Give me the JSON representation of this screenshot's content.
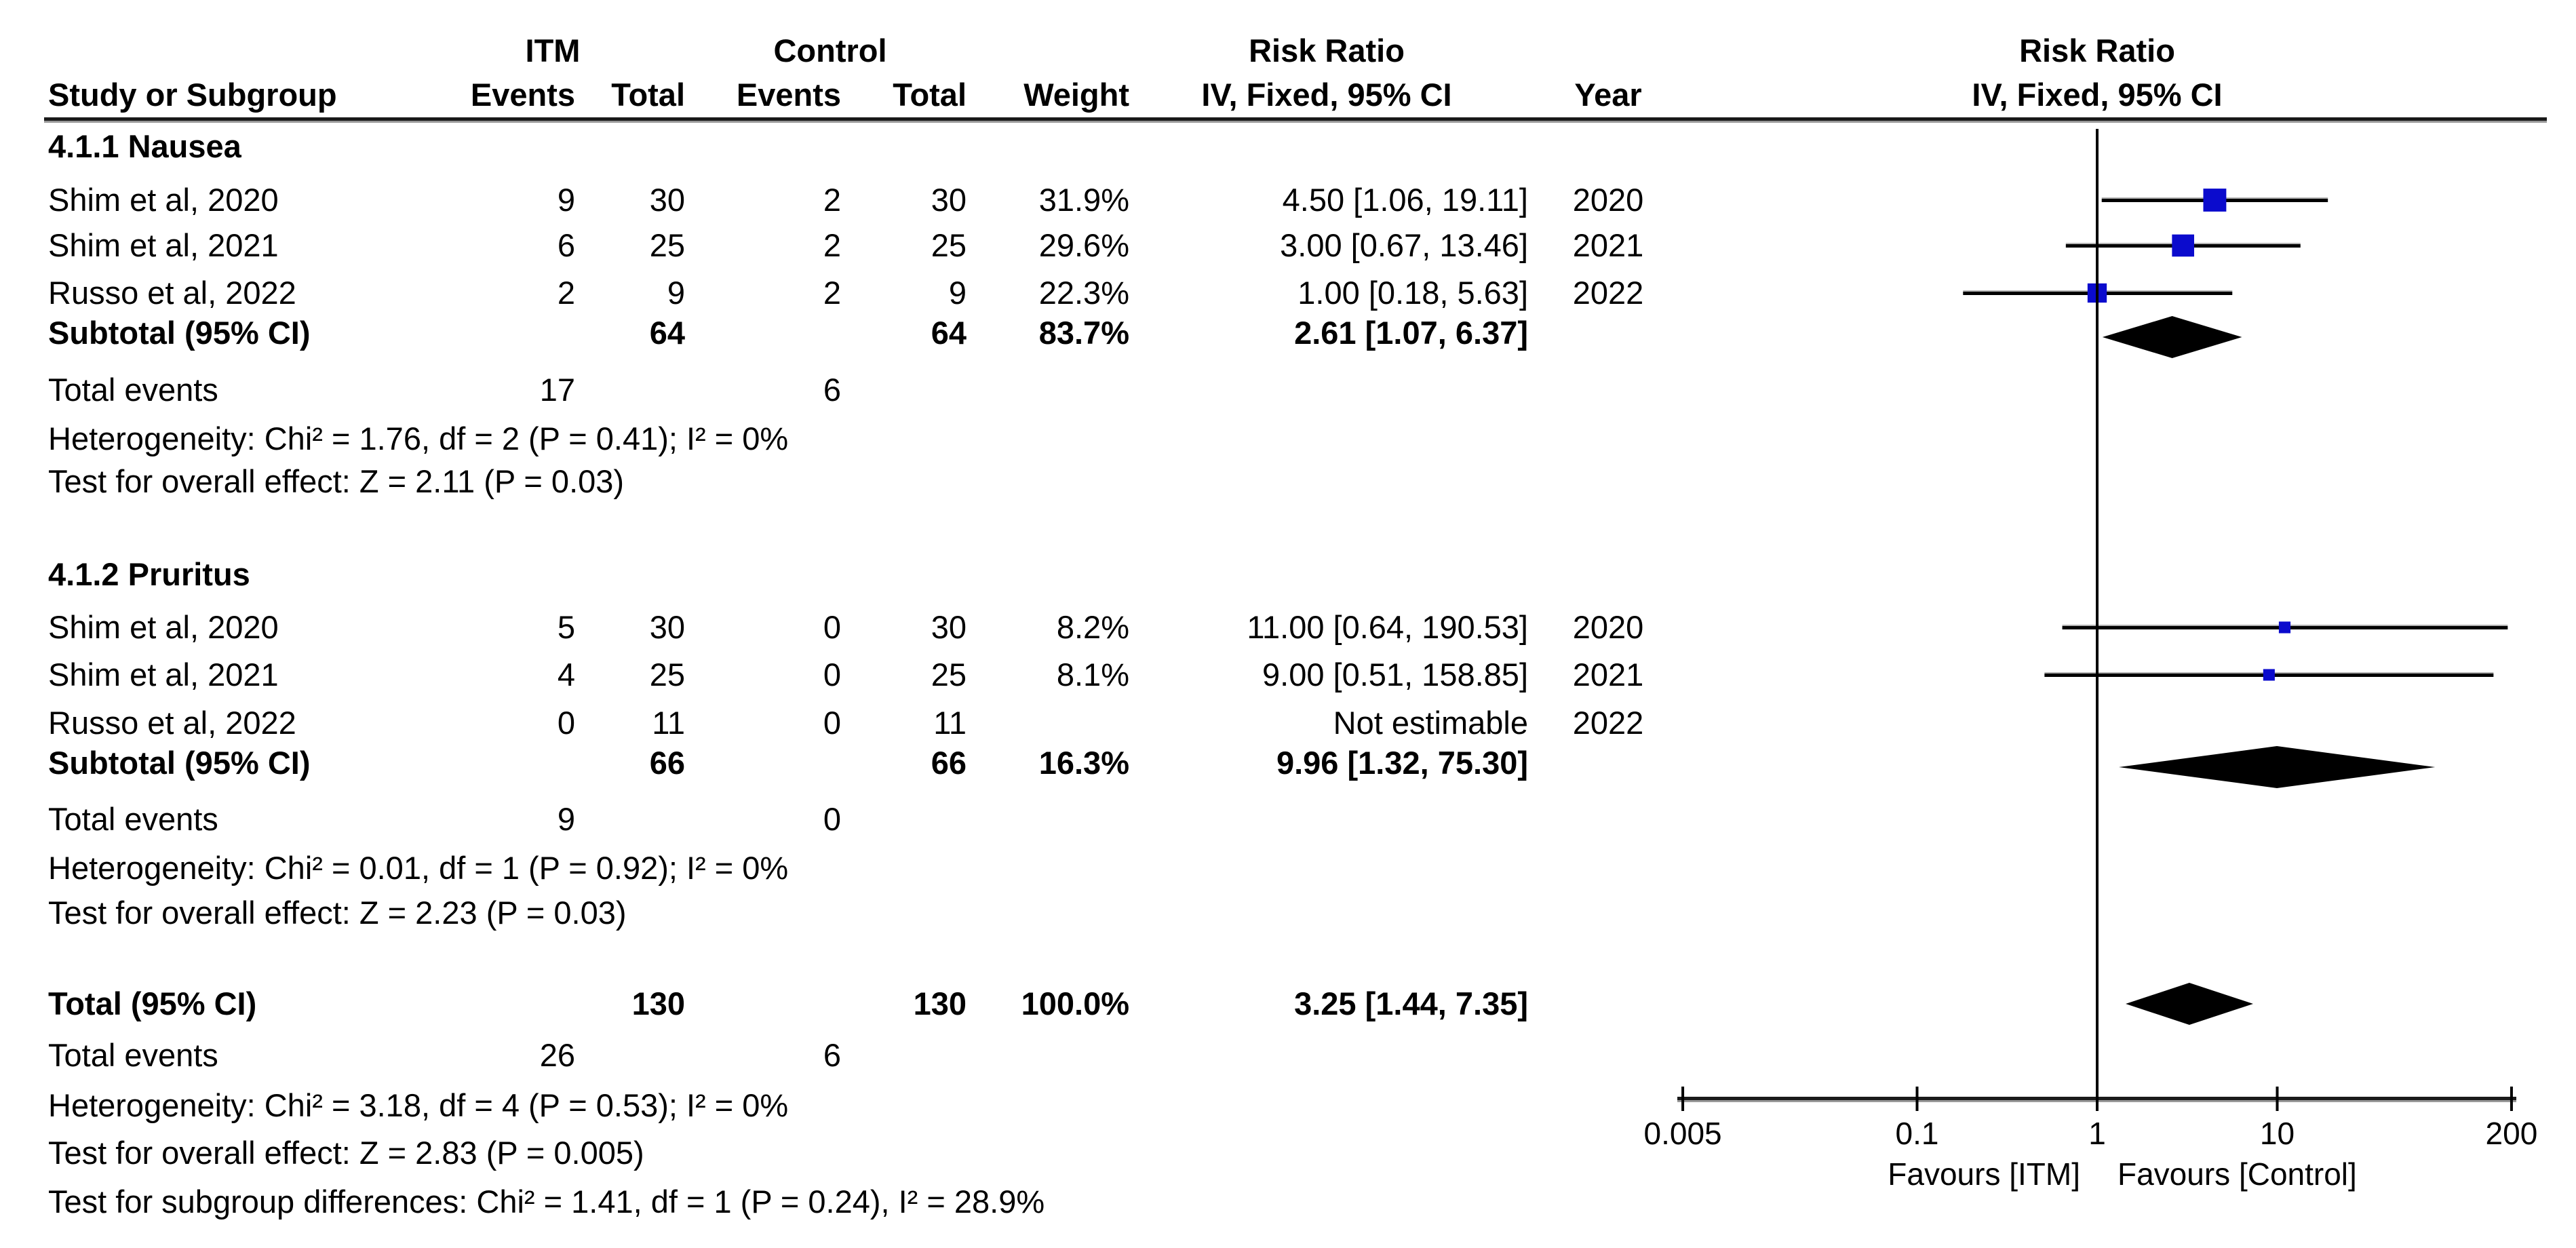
{
  "header": {
    "group_itm": "ITM",
    "group_control": "Control",
    "rr_col_line1": "Risk Ratio",
    "rr_col_line2": "IV, Fixed, 95% CI",
    "study": "Study or Subgroup",
    "events1": "Events",
    "total1": "Total",
    "events2": "Events",
    "total2": "Total",
    "weight": "Weight",
    "year": "Year",
    "plot_line1": "Risk Ratio",
    "plot_line2": "IV, Fixed, 95% CI"
  },
  "axis": {
    "ticks": [
      "0.005",
      "0.1",
      "1",
      "10",
      "200"
    ],
    "favours_left": "Favours [ITM]",
    "favours_right": "Favours [Control]"
  },
  "colors": {
    "marker_blue": "#0b0bcd",
    "diamond_black": "#000000",
    "line_black": "#000000",
    "line_gray": "#b4b4b4"
  },
  "sections": [
    {
      "label": "4.1.1 Nausea",
      "studies": [
        {
          "study": "Shim et al, 2020",
          "e1": "9",
          "t1": "30",
          "e2": "2",
          "t2": "30",
          "weight": "31.9%",
          "ci": "4.50 [1.06, 19.11]",
          "year": "2020",
          "rr": 4.5,
          "lo": 1.06,
          "hi": 19.11,
          "wt": 31.9
        },
        {
          "study": "Shim et al, 2021",
          "e1": "6",
          "t1": "25",
          "e2": "2",
          "t2": "25",
          "weight": "29.6%",
          "ci": "3.00 [0.67, 13.46]",
          "year": "2021",
          "rr": 3.0,
          "lo": 0.67,
          "hi": 13.46,
          "wt": 29.6
        },
        {
          "study": "Russo et al, 2022",
          "e1": "2",
          "t1": "9",
          "e2": "2",
          "t2": "9",
          "weight": "22.3%",
          "ci": "1.00 [0.18, 5.63]",
          "year": "2022",
          "rr": 1.0,
          "lo": 0.18,
          "hi": 5.63,
          "wt": 22.3
        }
      ],
      "subtotal": {
        "label": "Subtotal (95% CI)",
        "t1": "64",
        "t2": "64",
        "weight": "83.7%",
        "ci": "2.61 [1.07, 6.37]",
        "rr": 2.61,
        "lo": 1.07,
        "hi": 6.37
      },
      "total_events": {
        "label": "Total events",
        "e1": "17",
        "e2": "6"
      },
      "heterogeneity": "Heterogeneity: Chi² = 1.76, df = 2 (P = 0.41); I² = 0%",
      "overall": "Test for overall effect: Z = 2.11 (P = 0.03)"
    },
    {
      "label": "4.1.2 Pruritus",
      "studies": [
        {
          "study": "Shim et al, 2020",
          "e1": "5",
          "t1": "30",
          "e2": "0",
          "t2": "30",
          "weight": "8.2%",
          "ci": "11.00 [0.64, 190.53]",
          "year": "2020",
          "rr": 11.0,
          "lo": 0.64,
          "hi": 190.53,
          "wt": 8.2
        },
        {
          "study": "Shim et al, 2021",
          "e1": "4",
          "t1": "25",
          "e2": "0",
          "t2": "25",
          "weight": "8.1%",
          "ci": "9.00 [0.51, 158.85]",
          "year": "2021",
          "rr": 9.0,
          "lo": 0.51,
          "hi": 158.85,
          "wt": 8.1
        },
        {
          "study": "Russo et al, 2022",
          "e1": "0",
          "t1": "11",
          "e2": "0",
          "t2": "11",
          "weight": "",
          "ci": "Not estimable",
          "year": "2022",
          "rr": null,
          "lo": null,
          "hi": null,
          "wt": null
        }
      ],
      "subtotal": {
        "label": "Subtotal (95% CI)",
        "t1": "66",
        "t2": "66",
        "weight": "16.3%",
        "ci": "9.96 [1.32, 75.30]",
        "rr": 9.96,
        "lo": 1.32,
        "hi": 75.3
      },
      "total_events": {
        "label": "Total events",
        "e1": "9",
        "e2": "0"
      },
      "heterogeneity": "Heterogeneity: Chi² = 0.01, df = 1 (P = 0.92); I² = 0%",
      "overall": "Test for overall effect: Z = 2.23 (P = 0.03)"
    }
  ],
  "total": {
    "label": "Total (95% CI)",
    "t1": "130",
    "t2": "130",
    "weight": "100.0%",
    "ci": "3.25 [1.44, 7.35]",
    "rr": 3.25,
    "lo": 1.44,
    "hi": 7.35,
    "total_events": {
      "label": "Total events",
      "e1": "26",
      "e2": "6"
    },
    "heterogeneity": "Heterogeneity: Chi² = 3.18, df = 4 (P = 0.53); I² = 0%",
    "overall": "Test for overall effect: Z = 2.83 (P = 0.005)",
    "subgroup_diff": "Test for subgroup differences: Chi² = 1.41, df = 1 (P = 0.24), I² = 28.9%"
  },
  "chart_data": {
    "type": "scatter",
    "subtype": "forest_plot",
    "effect_measure": "Risk Ratio",
    "model": "IV, Fixed, 95% CI",
    "x_scale": "log",
    "xlim": [
      0.005,
      200
    ],
    "x_ticks": [
      0.005,
      0.1,
      1,
      10,
      200
    ],
    "favours_left": "Favours [ITM]",
    "favours_right": "Favours [Control]",
    "subgroups": [
      {
        "name": "4.1.1 Nausea",
        "studies": [
          {
            "study": "Shim et al, 2020",
            "itm_events": 9,
            "itm_total": 30,
            "control_events": 2,
            "control_total": 30,
            "weight_pct": 31.9,
            "rr": 4.5,
            "ci_low": 1.06,
            "ci_high": 19.11,
            "year": 2020
          },
          {
            "study": "Shim et al, 2021",
            "itm_events": 6,
            "itm_total": 25,
            "control_events": 2,
            "control_total": 25,
            "weight_pct": 29.6,
            "rr": 3.0,
            "ci_low": 0.67,
            "ci_high": 13.46,
            "year": 2021
          },
          {
            "study": "Russo et al, 2022",
            "itm_events": 2,
            "itm_total": 9,
            "control_events": 2,
            "control_total": 9,
            "weight_pct": 22.3,
            "rr": 1.0,
            "ci_low": 0.18,
            "ci_high": 5.63,
            "year": 2022
          }
        ],
        "subtotal": {
          "itm_total": 64,
          "control_total": 64,
          "weight_pct": 83.7,
          "rr": 2.61,
          "ci_low": 1.07,
          "ci_high": 6.37,
          "total_events_itm": 17,
          "total_events_control": 6,
          "heterogeneity": "Chi² = 1.76, df = 2 (P = 0.41); I² = 0%",
          "overall_effect": "Z = 2.11 (P = 0.03)"
        }
      },
      {
        "name": "4.1.2 Pruritus",
        "studies": [
          {
            "study": "Shim et al, 2020",
            "itm_events": 5,
            "itm_total": 30,
            "control_events": 0,
            "control_total": 30,
            "weight_pct": 8.2,
            "rr": 11.0,
            "ci_low": 0.64,
            "ci_high": 190.53,
            "year": 2020
          },
          {
            "study": "Shim et al, 2021",
            "itm_events": 4,
            "itm_total": 25,
            "control_events": 0,
            "control_total": 25,
            "weight_pct": 8.1,
            "rr": 9.0,
            "ci_low": 0.51,
            "ci_high": 158.85,
            "year": 2021
          },
          {
            "study": "Russo et al, 2022",
            "itm_events": 0,
            "itm_total": 11,
            "control_events": 0,
            "control_total": 11,
            "weight_pct": null,
            "rr": null,
            "ci_low": null,
            "ci_high": null,
            "year": 2022,
            "note": "Not estimable"
          }
        ],
        "subtotal": {
          "itm_total": 66,
          "control_total": 66,
          "weight_pct": 16.3,
          "rr": 9.96,
          "ci_low": 1.32,
          "ci_high": 75.3,
          "total_events_itm": 9,
          "total_events_control": 0,
          "heterogeneity": "Chi² = 0.01, df = 1 (P = 0.92); I² = 0%",
          "overall_effect": "Z = 2.23 (P = 0.03)"
        }
      }
    ],
    "total": {
      "itm_total": 130,
      "control_total": 130,
      "weight_pct": 100.0,
      "rr": 3.25,
      "ci_low": 1.44,
      "ci_high": 7.35,
      "total_events_itm": 26,
      "total_events_control": 6,
      "heterogeneity": "Chi² = 3.18, df = 4 (P = 0.53); I² = 0%",
      "overall_effect": "Z = 2.83 (P = 0.005)",
      "subgroup_differences": "Chi² = 1.41, df = 1 (P = 0.24), I² = 28.9%"
    }
  }
}
